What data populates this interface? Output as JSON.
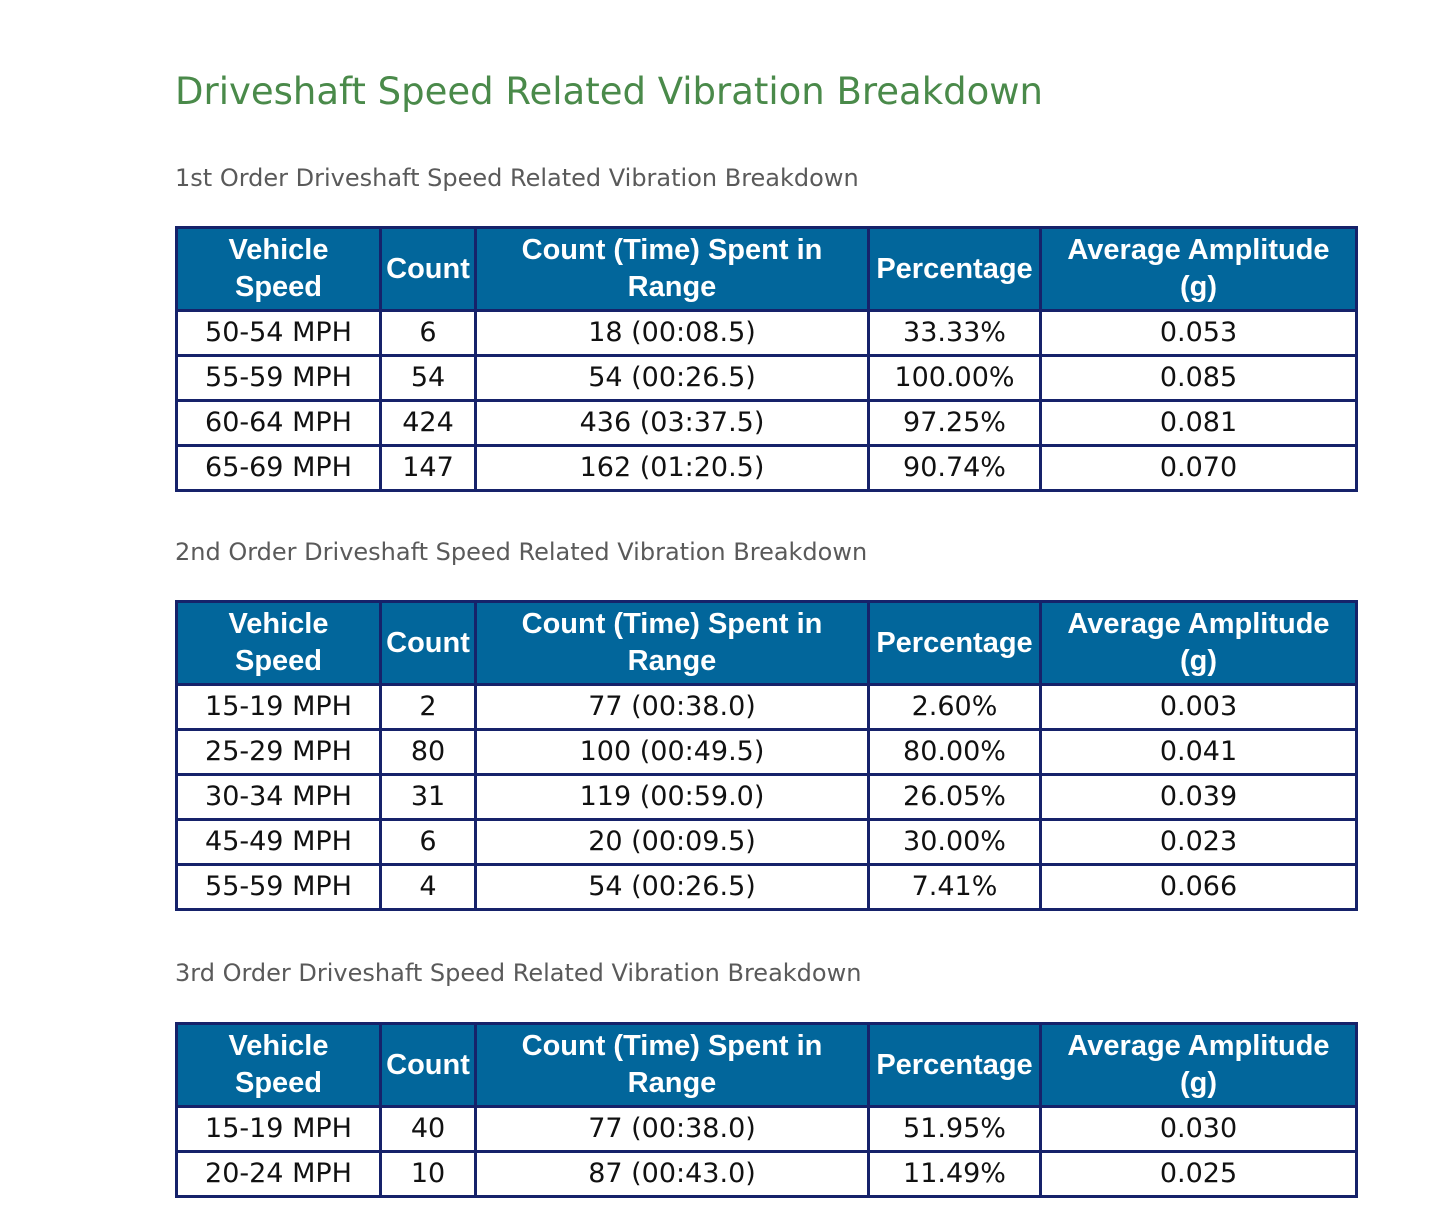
{
  "page": {
    "title": "Driveshaft Speed Related Vibration Breakdown"
  },
  "columns": {
    "vehicle_speed": "Vehicle Speed",
    "count": "Count",
    "count_time": "Count (Time) Spent in Range",
    "percentage": "Percentage",
    "avg_amplitude": "Average Amplitude (g)"
  },
  "sections": [
    {
      "title": "1st Order Driveshaft Speed Related Vibration Breakdown",
      "rows": [
        {
          "speed": "50-54 MPH",
          "count": "6",
          "time": "18 (00:08.5)",
          "percentage": "33.33%",
          "amplitude": "0.053"
        },
        {
          "speed": "55-59 MPH",
          "count": "54",
          "time": "54 (00:26.5)",
          "percentage": "100.00%",
          "amplitude": "0.085"
        },
        {
          "speed": "60-64 MPH",
          "count": "424",
          "time": "436 (03:37.5)",
          "percentage": "97.25%",
          "amplitude": "0.081"
        },
        {
          "speed": "65-69 MPH",
          "count": "147",
          "time": "162 (01:20.5)",
          "percentage": "90.74%",
          "amplitude": "0.070"
        }
      ]
    },
    {
      "title": "2nd Order Driveshaft Speed Related Vibration Breakdown",
      "rows": [
        {
          "speed": "15-19 MPH",
          "count": "2",
          "time": "77 (00:38.0)",
          "percentage": "2.60%",
          "amplitude": "0.003"
        },
        {
          "speed": "25-29 MPH",
          "count": "80",
          "time": "100 (00:49.5)",
          "percentage": "80.00%",
          "amplitude": "0.041"
        },
        {
          "speed": "30-34 MPH",
          "count": "31",
          "time": "119 (00:59.0)",
          "percentage": "26.05%",
          "amplitude": "0.039"
        },
        {
          "speed": "45-49 MPH",
          "count": "6",
          "time": "20 (00:09.5)",
          "percentage": "30.00%",
          "amplitude": "0.023"
        },
        {
          "speed": "55-59 MPH",
          "count": "4",
          "time": "54 (00:26.5)",
          "percentage": "7.41%",
          "amplitude": "0.066"
        }
      ]
    },
    {
      "title": "3rd Order Driveshaft Speed Related Vibration Breakdown",
      "rows": [
        {
          "speed": "15-19 MPH",
          "count": "40",
          "time": "77 (00:38.0)",
          "percentage": "51.95%",
          "amplitude": "0.030"
        },
        {
          "speed": "20-24 MPH",
          "count": "10",
          "time": "87 (00:43.0)",
          "percentage": "11.49%",
          "amplitude": "0.025"
        }
      ]
    }
  ],
  "colors": {
    "title_green": "#4a8a4a",
    "header_blue": "#02669b",
    "border_navy": "#16226a",
    "subtitle_gray": "#5a5a5a"
  }
}
